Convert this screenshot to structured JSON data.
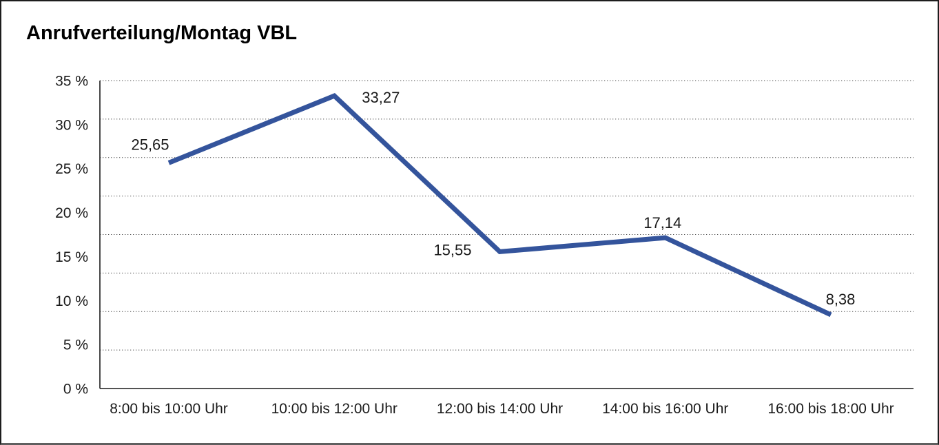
{
  "title": "Anrufverteilung/Montag VBL",
  "colors": {
    "line": "#34549C",
    "text": "#1a1a1a",
    "grid": "#4d4d4d",
    "axis": "#1a1a1a",
    "background": "#ffffff",
    "border": "#1d1d1d"
  },
  "chart_data": {
    "type": "line",
    "title": "Anrufverteilung/Montag VBL",
    "categories": [
      "8:00 bis 10:00 Uhr",
      "10:00 bis 12:00 Uhr",
      "12:00 bis 14:00 Uhr",
      "14:00 bis 16:00 Uhr",
      "16:00 bis 18:00 Uhr"
    ],
    "series": [
      {
        "name": "Anrufverteilung Montag VBL",
        "values": [
          25.65,
          33.27,
          15.55,
          17.14,
          8.38
        ],
        "point_labels": [
          "25,65",
          "33,27",
          "15,55",
          "17,14",
          "8,38"
        ],
        "color": "#34549C"
      }
    ],
    "xlabel": "",
    "ylabel": "",
    "ylim": [
      0,
      35
    ],
    "y_ticks": [
      {
        "value": 35,
        "label": "35 %"
      },
      {
        "value": 30,
        "label": "30 %"
      },
      {
        "value": 25,
        "label": "25 %"
      },
      {
        "value": 20,
        "label": "20 %"
      },
      {
        "value": 15,
        "label": "15 %"
      },
      {
        "value": 10,
        "label": "10 %"
      },
      {
        "value": 5,
        "label": "5 %"
      },
      {
        "value": 0,
        "label": "0 %"
      }
    ],
    "grid": {
      "horizontal": true,
      "style": "dotted",
      "line_count": 9
    },
    "legend": "none",
    "data_labels": true
  }
}
